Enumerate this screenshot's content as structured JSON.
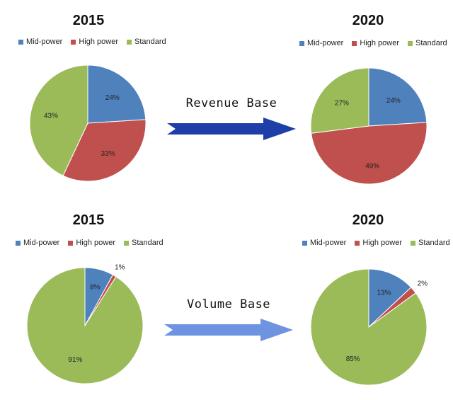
{
  "colors": {
    "mid_power": "#4F81BD",
    "high_power": "#C0504D",
    "standard": "#9BBB59"
  },
  "chart_data": [
    {
      "type": "pie",
      "title": "2015",
      "categories": [
        "Mid-power",
        "High power",
        "Standard"
      ],
      "values": [
        24,
        33,
        43
      ],
      "labels": [
        "24%",
        "33%",
        "43%"
      ],
      "legend": "top"
    },
    {
      "type": "pie",
      "title": "2020",
      "categories": [
        "Mid-power",
        "High power",
        "Standard"
      ],
      "values": [
        24,
        49,
        27
      ],
      "labels": [
        "24%",
        "49%",
        "27%"
      ],
      "legend": "top"
    },
    {
      "type": "pie",
      "title": "2015",
      "categories": [
        "Mid-power",
        "High power",
        "Standard"
      ],
      "values": [
        8,
        1,
        91
      ],
      "labels": [
        "8%",
        "1%",
        "91%"
      ],
      "legend": "top"
    },
    {
      "type": "pie",
      "title": "2020",
      "categories": [
        "Mid-power",
        "High power",
        "Standard"
      ],
      "values": [
        13,
        2,
        85
      ],
      "labels": [
        "13%",
        "2%",
        "85%"
      ],
      "legend": "top"
    }
  ],
  "arrows": [
    {
      "label": "Revenue Base",
      "color": "#1F3FA8"
    },
    {
      "label": "Volume Base",
      "color": "#6E93E0"
    }
  ]
}
